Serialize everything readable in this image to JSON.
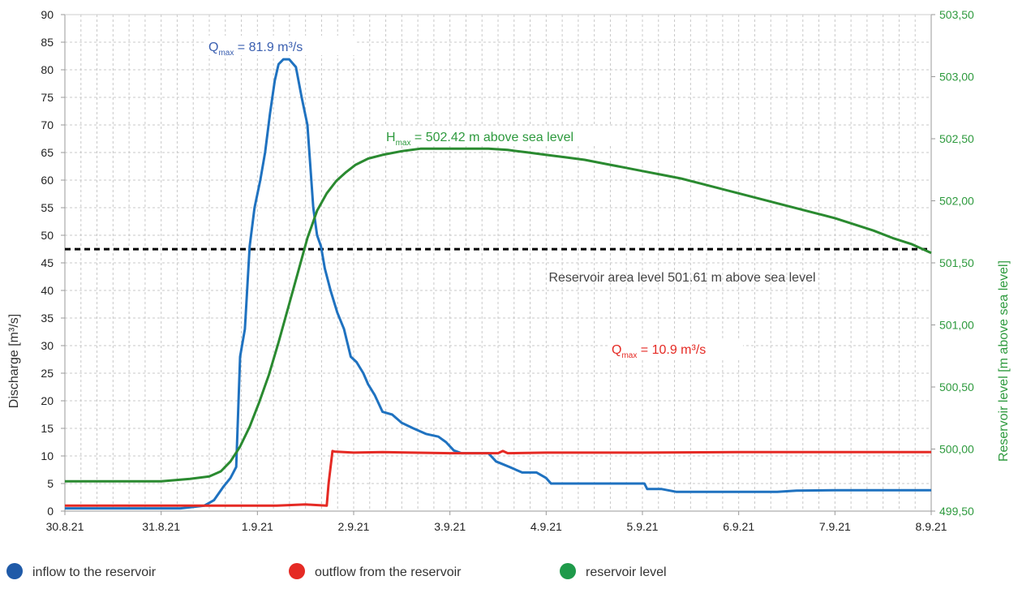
{
  "chart_data": {
    "type": "line",
    "x_tick_labels": [
      "30.8.21",
      "31.8.21",
      "1.9.21",
      "2.9.21",
      "3.9.21",
      "4.9.21",
      "5.9.21",
      "6.9.21",
      "7.9.21",
      "8.9.21"
    ],
    "xlim_days": [
      0,
      9
    ],
    "ylabel": "Discharge  [m³/s]",
    "ylabel_right": "Reservoir level [m above sea level]",
    "ylim": [
      0,
      90
    ],
    "y_ticks": [
      0,
      5,
      10,
      15,
      20,
      25,
      30,
      35,
      40,
      45,
      50,
      55,
      60,
      65,
      70,
      75,
      80,
      85,
      90
    ],
    "ylim_right": [
      499.5,
      503.5
    ],
    "y_ticks_right_labels": [
      "499,50",
      "500,00",
      "500,50",
      "501,00",
      "501,50",
      "502,00",
      "502,50",
      "503,00",
      "503,50"
    ],
    "grid": true,
    "series": [
      {
        "name": "inflow to the reservoir",
        "color": "#1f72c0",
        "axis": "left",
        "x": [
          0.0,
          1.2,
          1.45,
          1.55,
          1.65,
          1.72,
          1.78,
          1.82,
          1.87,
          1.92,
          1.97,
          2.03,
          2.08,
          2.13,
          2.18,
          2.22,
          2.27,
          2.33,
          2.4,
          2.46,
          2.52,
          2.58,
          2.62,
          2.66,
          2.7,
          2.76,
          2.83,
          2.9,
          2.97,
          3.03,
          3.1,
          3.15,
          3.22,
          3.3,
          3.4,
          3.5,
          3.62,
          3.75,
          3.88,
          3.96,
          4.04,
          4.12,
          4.3,
          4.4,
          4.48,
          4.55,
          4.62,
          4.75,
          4.9,
          5.0,
          5.05,
          5.2,
          5.6,
          6.02,
          6.05,
          6.2,
          6.35,
          6.7,
          7.2,
          7.4,
          7.6,
          8.0,
          9.0
        ],
        "y": [
          0.5,
          0.5,
          1.0,
          2.0,
          4.5,
          6.0,
          8.0,
          28.0,
          33.0,
          48.0,
          55.0,
          60.0,
          65.0,
          72.0,
          78.0,
          81.0,
          81.9,
          81.9,
          80.5,
          75.0,
          70.0,
          55.0,
          50.0,
          48.0,
          44.0,
          40.0,
          36.0,
          33.0,
          28.0,
          27.0,
          25.0,
          23.0,
          21.0,
          18.0,
          17.5,
          16.0,
          15.0,
          14.0,
          13.5,
          12.5,
          11.0,
          10.5,
          10.5,
          10.5,
          9.0,
          8.5,
          8.0,
          7.0,
          7.0,
          6.0,
          5.0,
          5.0,
          5.0,
          5.0,
          4.0,
          4.0,
          3.5,
          3.5,
          3.5,
          3.5,
          3.7,
          3.8,
          3.8
        ]
      },
      {
        "name": "outflow from the reservoir",
        "color": "#e52a24",
        "axis": "left",
        "x": [
          0.0,
          1.0,
          1.5,
          2.2,
          2.5,
          2.72,
          2.74,
          2.78,
          2.8,
          3.0,
          3.3,
          3.6,
          4.0,
          4.5,
          4.55,
          4.6,
          5.0,
          6.0,
          7.0,
          8.0,
          9.0
        ],
        "y": [
          1.0,
          1.0,
          1.0,
          1.0,
          1.2,
          1.0,
          5.0,
          10.9,
          10.8,
          10.6,
          10.7,
          10.6,
          10.5,
          10.5,
          10.9,
          10.5,
          10.6,
          10.6,
          10.7,
          10.7,
          10.7
        ]
      },
      {
        "name": "reservoir level",
        "color": "#2a8a30",
        "axis": "right",
        "x": [
          0.0,
          1.0,
          1.3,
          1.5,
          1.62,
          1.72,
          1.82,
          1.92,
          2.02,
          2.12,
          2.22,
          2.32,
          2.42,
          2.52,
          2.62,
          2.72,
          2.82,
          2.92,
          3.02,
          3.15,
          3.3,
          3.5,
          3.7,
          3.9,
          4.0,
          4.2,
          4.4,
          4.6,
          4.8,
          5.0,
          5.2,
          5.4,
          5.6,
          5.8,
          6.0,
          6.2,
          6.4,
          6.6,
          6.8,
          7.0,
          7.2,
          7.4,
          7.6,
          7.8,
          8.0,
          8.2,
          8.4,
          8.6,
          8.8,
          9.0
        ],
        "y": [
          499.74,
          499.74,
          499.76,
          499.78,
          499.82,
          499.9,
          500.02,
          500.18,
          500.38,
          500.6,
          500.86,
          501.14,
          501.42,
          501.7,
          501.92,
          502.06,
          502.16,
          502.23,
          502.29,
          502.34,
          502.37,
          502.4,
          502.42,
          502.42,
          502.42,
          502.42,
          502.42,
          502.41,
          502.39,
          502.37,
          502.35,
          502.33,
          502.3,
          502.27,
          502.24,
          502.21,
          502.18,
          502.14,
          502.1,
          502.06,
          502.02,
          501.98,
          501.94,
          501.9,
          501.86,
          501.81,
          501.76,
          501.7,
          501.65,
          501.58
        ]
      }
    ],
    "reference_line": {
      "label": "Reservoir area level 501.61 m above sea level",
      "value_right": 501.61,
      "color": "#000000"
    },
    "annotations": {
      "inflow_max": {
        "prefix": "Q",
        "sub": "max",
        "suffix": " = 81.9 m³/s",
        "color": "#3a5fb0"
      },
      "level_max": {
        "prefix": "H",
        "sub": "max",
        "suffix": " = 502.42 m above sea level",
        "color": "#2e9a3e"
      },
      "outflow_max": {
        "prefix": "Q",
        "sub": "max",
        "suffix": " = 10.9 m³/s",
        "color": "#e52a24"
      }
    },
    "legend": {
      "position": "bottom",
      "items": [
        {
          "label": "inflow to the reservoir",
          "color": "#1f5aa8"
        },
        {
          "label": "outflow from the reservoir",
          "color": "#e52a24"
        },
        {
          "label": "reservoir level",
          "color": "#1e9a4a"
        }
      ]
    }
  }
}
